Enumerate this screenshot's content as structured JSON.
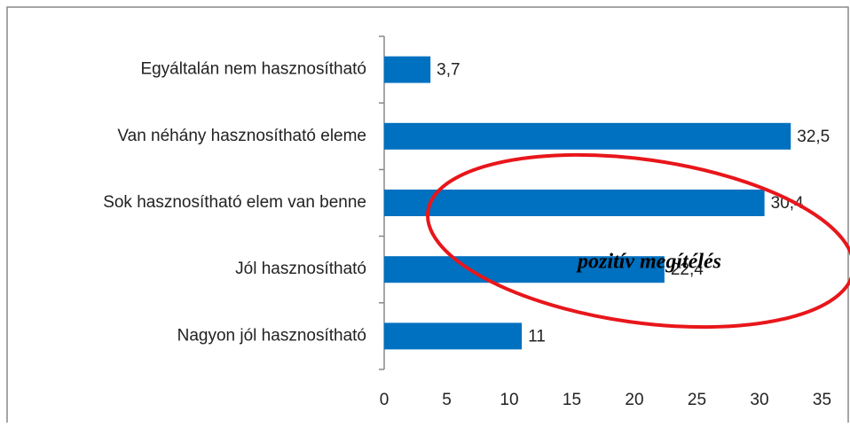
{
  "chart_data": {
    "type": "bar",
    "orientation": "horizontal",
    "categories": [
      "Egyáltalán nem hasznosítható",
      "Van néhány hasznosítható eleme",
      "Sok hasznosítható elem van benne",
      "Jól hasznosítható",
      "Nagyon jól hasznosítható"
    ],
    "values": [
      3.7,
      32.5,
      30.4,
      22.4,
      11
    ],
    "value_labels": [
      "3,7",
      "32,5",
      "30,4",
      "22,4",
      "11"
    ],
    "color": "#0070c0",
    "xlim": [
      0,
      35
    ],
    "xticks": [
      0,
      5,
      10,
      15,
      20,
      25,
      30,
      35
    ],
    "annotation": "pozitív megítélés"
  }
}
